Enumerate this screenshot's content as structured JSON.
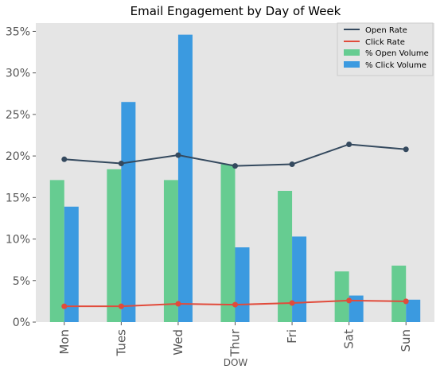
{
  "chart_data": {
    "type": "bar",
    "title": "Email Engagement by Day of Week",
    "xlabel": "DOW",
    "ylabel": "",
    "categories": [
      "Mon",
      "Tues",
      "Wed",
      "Thur",
      "Fri",
      "Sat",
      "Sun"
    ],
    "ylim": [
      0,
      0.36
    ],
    "y_ticks": [
      0,
      0.05,
      0.1,
      0.15,
      0.2,
      0.25,
      0.3,
      0.35
    ],
    "y_tick_labels": [
      "0%",
      "5%",
      "10%",
      "15%",
      "20%",
      "25%",
      "30%",
      "35%"
    ],
    "grid": false,
    "legend_position": "top-right",
    "background_color": "#e5e5e5",
    "bar_series": [
      {
        "name": "% Open Volume",
        "color": "#66cc91",
        "values": [
          0.171,
          0.184,
          0.171,
          0.19,
          0.158,
          0.061,
          0.068
        ]
      },
      {
        "name": "% Click Volume",
        "color": "#3b9ae0",
        "values": [
          0.139,
          0.265,
          0.346,
          0.09,
          0.103,
          0.032,
          0.027
        ]
      }
    ],
    "line_series": [
      {
        "name": "Open Rate",
        "color": "#34495e",
        "values": [
          0.196,
          0.191,
          0.201,
          0.188,
          0.19,
          0.214,
          0.208
        ]
      },
      {
        "name": "Click Rate",
        "color": "#e14b3b",
        "values": [
          0.019,
          0.019,
          0.022,
          0.021,
          0.023,
          0.026,
          0.025
        ]
      }
    ]
  }
}
